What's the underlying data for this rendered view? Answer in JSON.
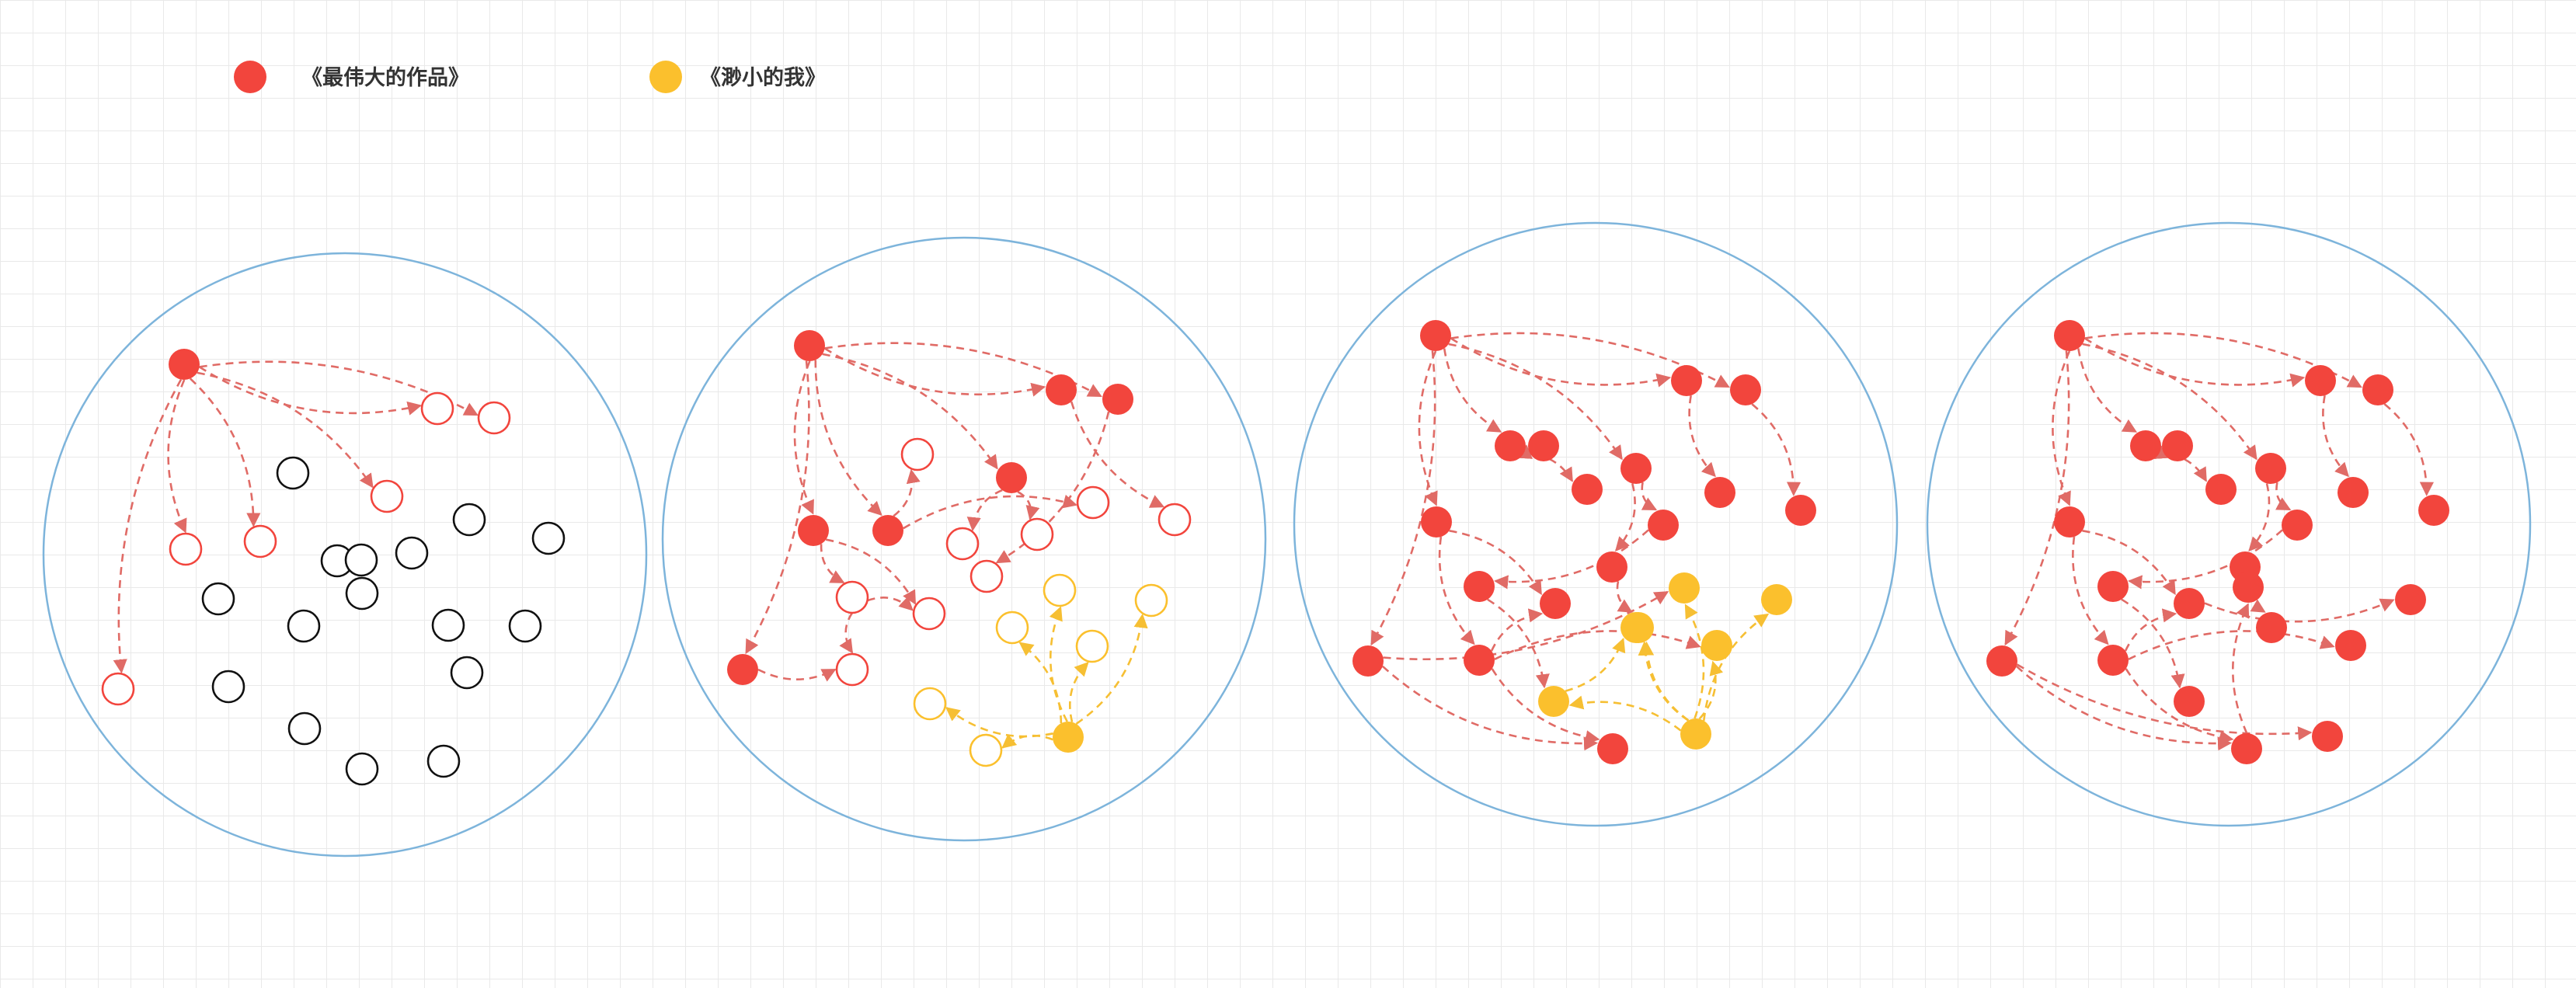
{
  "legend": [
    {
      "label": "《最伟大的作品》",
      "color": "#f2453d"
    },
    {
      "label": "《渺小的我》",
      "color": "#fbc02d"
    }
  ],
  "colors": {
    "red": "#f2453d",
    "red_edge": "#e06b66",
    "yellow": "#fbc02d",
    "yellow_edge": "#f6bf33",
    "black": "#111111",
    "circle": "#7db4db"
  },
  "panels": [
    {
      "name": "panel-1",
      "nodes": [
        {
          "c": "r",
          "f": 1
        },
        {
          "c": "r",
          "f": 0
        },
        {
          "c": "r",
          "f": 0
        },
        {
          "c": "r",
          "f": 0
        },
        {
          "c": "r",
          "f": 0
        },
        {
          "c": "r",
          "f": 0
        },
        {
          "c": "r",
          "f": 0
        },
        {
          "c": "k",
          "f": 0
        },
        {
          "c": "k",
          "f": 0
        },
        {
          "c": "k",
          "f": 0
        },
        {
          "c": "k",
          "f": 0
        },
        {
          "c": "k",
          "f": 0
        },
        {
          "c": "k",
          "f": 0
        },
        {
          "c": "k",
          "f": 0
        },
        {
          "c": "k",
          "f": 0
        },
        {
          "c": "k",
          "f": 0
        },
        {
          "c": "k",
          "f": 0
        },
        {
          "c": "k",
          "f": 0
        },
        {
          "c": "k",
          "f": 0
        },
        {
          "c": "k",
          "f": 0
        },
        {
          "c": "k",
          "f": 0
        },
        {
          "c": "k",
          "f": 0
        },
        {
          "c": "k",
          "f": 0
        }
      ],
      "edges": [
        {
          "s": 0,
          "t": 1,
          "c": "r"
        },
        {
          "s": 0,
          "t": 2,
          "c": "r"
        },
        {
          "s": 0,
          "t": 3,
          "c": "r"
        },
        {
          "s": 0,
          "t": 4,
          "c": "r"
        },
        {
          "s": 0,
          "t": 5,
          "c": "r"
        },
        {
          "s": 0,
          "t": 6,
          "c": "r"
        }
      ]
    },
    {
      "name": "panel-2",
      "nodes": [
        {
          "c": "r",
          "f": 1
        },
        {
          "c": "r",
          "f": 1
        },
        {
          "c": "r",
          "f": 1
        },
        {
          "c": "r",
          "f": 1
        },
        {
          "c": "r",
          "f": 1
        },
        {
          "c": "r",
          "f": 1
        },
        {
          "c": "r",
          "f": 1
        },
        {
          "c": "r",
          "f": 0
        },
        {
          "c": "r",
          "f": 0
        },
        {
          "c": "r",
          "f": 0
        },
        {
          "c": "r",
          "f": 0
        },
        {
          "c": "r",
          "f": 0
        },
        {
          "c": "r",
          "f": 0
        },
        {
          "c": "r",
          "f": 0
        },
        {
          "c": "r",
          "f": 0
        },
        {
          "c": "r",
          "f": 0
        },
        {
          "c": "y",
          "f": 1
        },
        {
          "c": "y",
          "f": 0
        },
        {
          "c": "y",
          "f": 0
        },
        {
          "c": "y",
          "f": 0
        },
        {
          "c": "y",
          "f": 0
        },
        {
          "c": "y",
          "f": 0
        },
        {
          "c": "y",
          "f": 0
        }
      ],
      "edges": [
        {
          "s": 0,
          "t": 1,
          "c": "r"
        },
        {
          "s": 0,
          "t": 2,
          "c": "r"
        },
        {
          "s": 0,
          "t": 3,
          "c": "r"
        },
        {
          "s": 0,
          "t": 4,
          "c": "r"
        },
        {
          "s": 0,
          "t": 5,
          "c": "r"
        },
        {
          "s": 0,
          "t": 6,
          "c": "r"
        },
        {
          "s": 1,
          "t": 11,
          "c": "r"
        },
        {
          "s": 2,
          "t": 15,
          "c": "r"
        },
        {
          "s": 3,
          "t": 7,
          "c": "r"
        },
        {
          "s": 3,
          "t": 10,
          "c": "r"
        },
        {
          "s": 4,
          "t": 8,
          "c": "r"
        },
        {
          "s": 4,
          "t": 9,
          "c": "r"
        },
        {
          "s": 5,
          "t": 12,
          "c": "r"
        },
        {
          "s": 5,
          "t": 13,
          "c": "r"
        },
        {
          "s": 6,
          "t": 14,
          "c": "r"
        },
        {
          "s": 12,
          "t": 13,
          "c": "r"
        },
        {
          "s": 12,
          "t": 14,
          "c": "r"
        },
        {
          "s": 16,
          "t": 17,
          "c": "y"
        },
        {
          "s": 16,
          "t": 18,
          "c": "y"
        },
        {
          "s": 16,
          "t": 19,
          "c": "y"
        },
        {
          "s": 16,
          "t": 20,
          "c": "y"
        },
        {
          "s": 16,
          "t": 21,
          "c": "y"
        },
        {
          "s": 16,
          "t": 22,
          "c": "y"
        }
      ]
    },
    {
      "name": "panel-3",
      "nodes": [
        {
          "c": "r",
          "f": 1
        },
        {
          "c": "r",
          "f": 1
        },
        {
          "c": "r",
          "f": 1
        },
        {
          "c": "r",
          "f": 1
        },
        {
          "c": "r",
          "f": 1
        },
        {
          "c": "r",
          "f": 1
        },
        {
          "c": "r",
          "f": 1
        },
        {
          "c": "r",
          "f": 1
        },
        {
          "c": "r",
          "f": 1
        },
        {
          "c": "r",
          "f": 1
        },
        {
          "c": "r",
          "f": 1
        },
        {
          "c": "r",
          "f": 1
        },
        {
          "c": "r",
          "f": 1
        },
        {
          "c": "r",
          "f": 1
        },
        {
          "c": "r",
          "f": 1
        },
        {
          "c": "r",
          "f": 1
        },
        {
          "c": "r",
          "f": 1
        },
        {
          "c": "y",
          "f": 1
        },
        {
          "c": "y",
          "f": 1
        },
        {
          "c": "y",
          "f": 1
        },
        {
          "c": "y",
          "f": 1
        },
        {
          "c": "y",
          "f": 1
        },
        {
          "c": "y",
          "f": 1
        },
        {
          "c": "y",
          "f": 1
        }
      ],
      "edges": [
        {
          "s": 0,
          "t": 1,
          "c": "r"
        },
        {
          "s": 0,
          "t": 2,
          "c": "r"
        },
        {
          "s": 0,
          "t": 3,
          "c": "r"
        },
        {
          "s": 0,
          "t": 4,
          "c": "r"
        },
        {
          "s": 0,
          "t": 5,
          "c": "r"
        },
        {
          "s": 0,
          "t": 6,
          "c": "r"
        },
        {
          "s": 1,
          "t": 11,
          "c": "r"
        },
        {
          "s": 2,
          "t": 13,
          "c": "r"
        },
        {
          "s": 3,
          "t": 7,
          "c": "r"
        },
        {
          "s": 3,
          "t": 8,
          "c": "r"
        },
        {
          "s": 4,
          "t": 9,
          "c": "r"
        },
        {
          "s": 4,
          "t": 10,
          "c": "r"
        },
        {
          "s": 5,
          "t": 14,
          "c": "r"
        },
        {
          "s": 5,
          "t": 15,
          "c": "r"
        },
        {
          "s": 6,
          "t": 16,
          "c": "r"
        },
        {
          "s": 14,
          "t": 15,
          "c": "r"
        },
        {
          "s": 14,
          "t": 16,
          "c": "r"
        },
        {
          "s": 9,
          "t": 12,
          "c": "r"
        },
        {
          "s": 10,
          "t": 18,
          "c": "r"
        },
        {
          "s": 14,
          "t": 19,
          "c": "r"
        },
        {
          "s": 6,
          "t": 21,
          "c": "r"
        },
        {
          "s": 12,
          "t": 17,
          "c": "r"
        },
        {
          "s": 22,
          "t": 17,
          "c": "y"
        },
        {
          "s": 22,
          "t": 18,
          "c": "y"
        },
        {
          "s": 22,
          "t": 19,
          "c": "y"
        },
        {
          "s": 22,
          "t": 20,
          "c": "y"
        },
        {
          "s": 22,
          "t": 21,
          "c": "y"
        },
        {
          "s": 22,
          "t": 23,
          "c": "y"
        },
        {
          "s": 17,
          "t": 23,
          "c": "y"
        }
      ]
    },
    {
      "name": "panel-4",
      "nodes": [
        {
          "c": "r",
          "f": 1
        },
        {
          "c": "r",
          "f": 1
        },
        {
          "c": "r",
          "f": 1
        },
        {
          "c": "r",
          "f": 1
        },
        {
          "c": "r",
          "f": 1
        },
        {
          "c": "r",
          "f": 1
        },
        {
          "c": "r",
          "f": 1
        },
        {
          "c": "r",
          "f": 1
        },
        {
          "c": "r",
          "f": 1
        },
        {
          "c": "r",
          "f": 1
        },
        {
          "c": "r",
          "f": 1
        },
        {
          "c": "r",
          "f": 1
        },
        {
          "c": "r",
          "f": 1
        },
        {
          "c": "r",
          "f": 1
        },
        {
          "c": "r",
          "f": 1
        },
        {
          "c": "r",
          "f": 1
        },
        {
          "c": "r",
          "f": 1
        },
        {
          "c": "r",
          "f": 1
        },
        {
          "c": "r",
          "f": 1
        },
        {
          "c": "r",
          "f": 1
        },
        {
          "c": "r",
          "f": 1
        },
        {
          "c": "r",
          "f": 1
        },
        {
          "c": "r",
          "f": 1
        }
      ],
      "edges": [
        {
          "s": 0,
          "t": 1,
          "c": "r"
        },
        {
          "s": 0,
          "t": 2,
          "c": "r"
        },
        {
          "s": 0,
          "t": 3,
          "c": "r"
        },
        {
          "s": 0,
          "t": 4,
          "c": "r"
        },
        {
          "s": 0,
          "t": 5,
          "c": "r"
        },
        {
          "s": 0,
          "t": 6,
          "c": "r"
        },
        {
          "s": 1,
          "t": 11,
          "c": "r"
        },
        {
          "s": 2,
          "t": 13,
          "c": "r"
        },
        {
          "s": 3,
          "t": 7,
          "c": "r"
        },
        {
          "s": 3,
          "t": 8,
          "c": "r"
        },
        {
          "s": 4,
          "t": 9,
          "c": "r"
        },
        {
          "s": 4,
          "t": 10,
          "c": "r"
        },
        {
          "s": 5,
          "t": 14,
          "c": "r"
        },
        {
          "s": 5,
          "t": 15,
          "c": "r"
        },
        {
          "s": 6,
          "t": 16,
          "c": "r"
        },
        {
          "s": 14,
          "t": 15,
          "c": "r"
        },
        {
          "s": 14,
          "t": 16,
          "c": "r"
        },
        {
          "s": 9,
          "t": 12,
          "c": "r"
        },
        {
          "s": 10,
          "t": 18,
          "c": "r"
        },
        {
          "s": 14,
          "t": 19,
          "c": "r"
        },
        {
          "s": 6,
          "t": 21,
          "c": "r"
        },
        {
          "s": 12,
          "t": 17,
          "c": "r"
        },
        {
          "s": 15,
          "t": 20,
          "c": "r"
        },
        {
          "s": 16,
          "t": 22,
          "c": "r"
        }
      ]
    }
  ]
}
